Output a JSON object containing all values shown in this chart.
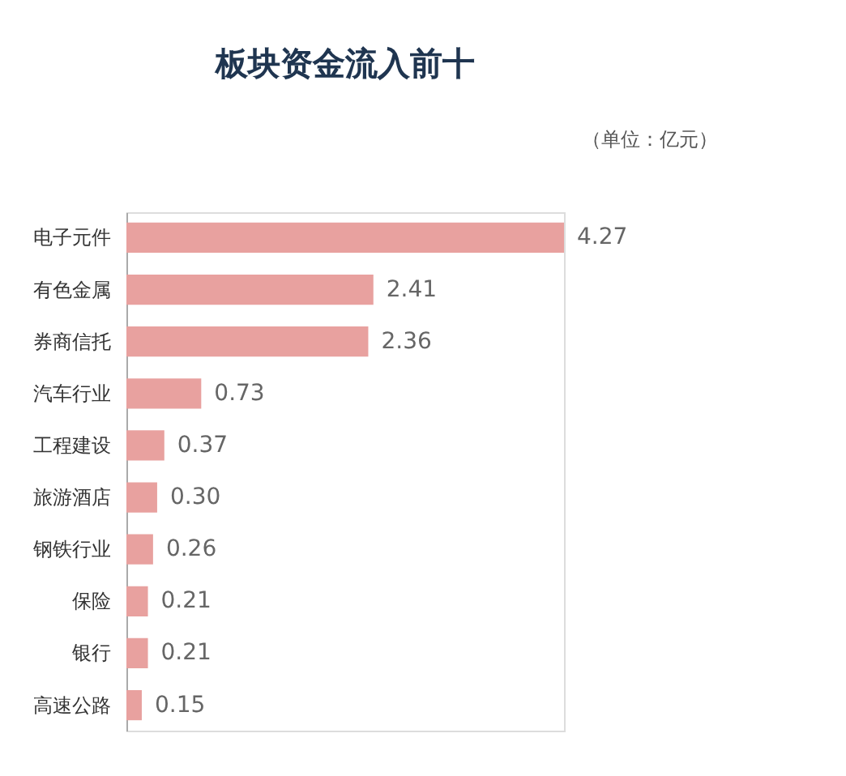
{
  "chart_data": {
    "type": "bar",
    "orientation": "horizontal",
    "title": "板块资金流入前十",
    "annotations": [
      "（单位：亿元）"
    ],
    "categories": [
      "电子元件",
      "有色金属",
      "券商信托",
      "汽车行业",
      "工程建设",
      "旅游酒店",
      "钢铁行业",
      "保险",
      "银行",
      "高速公路"
    ],
    "values": [
      4.27,
      2.41,
      2.36,
      0.73,
      0.37,
      0.3,
      0.26,
      0.21,
      0.21,
      0.15
    ],
    "value_labels": [
      "4.27",
      "2.41",
      "2.36",
      "0.73",
      "0.37",
      "0.30",
      "0.26",
      "0.21",
      "0.21",
      "0.15"
    ],
    "color": "#e8a19f"
  }
}
